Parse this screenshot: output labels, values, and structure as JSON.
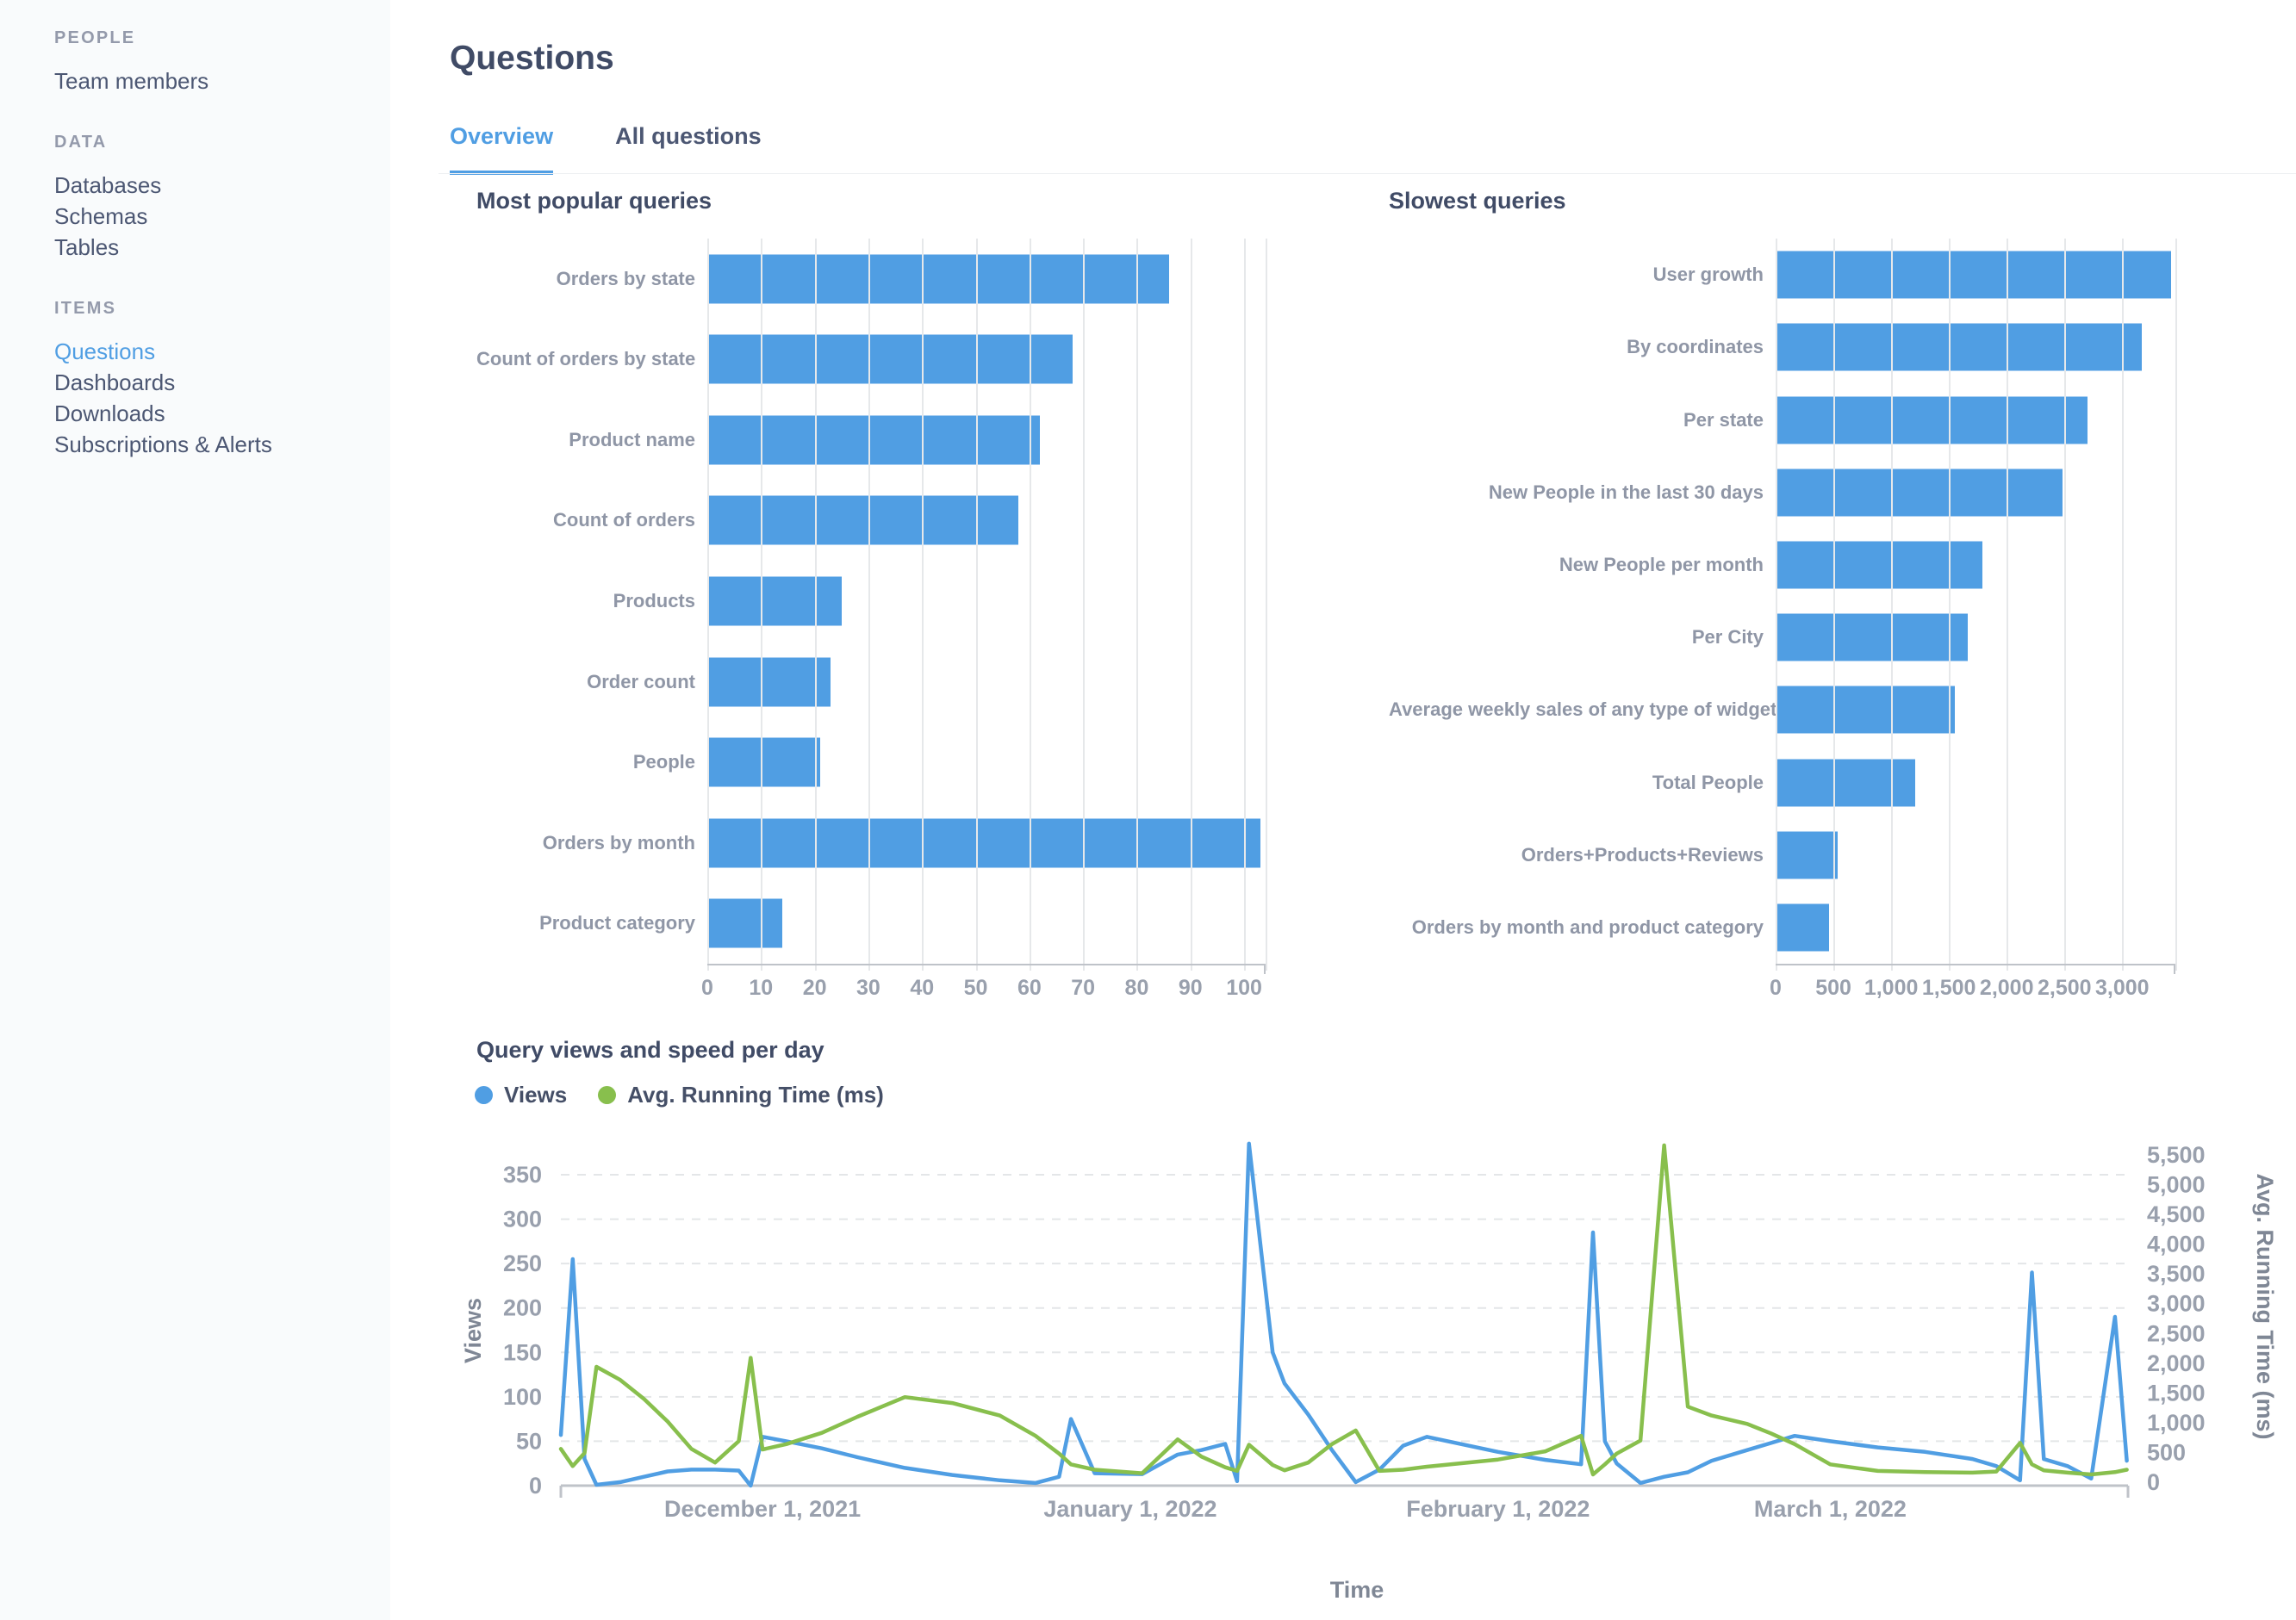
{
  "colors": {
    "brand_blue": "#509ee3",
    "series_green": "#88bf4d",
    "sidebar_bg": "#f9fbfc",
    "text_dark": "#404b66",
    "text_body": "#4c5773",
    "text_muted": "#949aab",
    "gridline": "#e6e8ea"
  },
  "sidebar": {
    "sections": [
      {
        "label": "PEOPLE",
        "items": [
          {
            "label": "Team members",
            "active": false
          }
        ]
      },
      {
        "label": "DATA",
        "items": [
          {
            "label": "Databases",
            "active": false
          },
          {
            "label": "Schemas",
            "active": false
          },
          {
            "label": "Tables",
            "active": false
          }
        ]
      },
      {
        "label": "ITEMS",
        "items": [
          {
            "label": "Questions",
            "active": true
          },
          {
            "label": "Dashboards",
            "active": false
          },
          {
            "label": "Downloads",
            "active": false
          },
          {
            "label": "Subscriptions & Alerts",
            "active": false
          }
        ]
      }
    ]
  },
  "header": {
    "title": "Questions",
    "tabs": [
      {
        "label": "Overview",
        "active": true
      },
      {
        "label": "All questions",
        "active": false
      }
    ]
  },
  "chart_data": [
    {
      "type": "bar",
      "orientation": "horizontal",
      "title": "Most popular queries",
      "categories": [
        "Orders by state",
        "Count of orders by state",
        "Product name",
        "Count of orders",
        "Products",
        "Order count",
        "People",
        "Orders by month",
        "Product category"
      ],
      "values": [
        86,
        68,
        62,
        58,
        25,
        23,
        21,
        103,
        14
      ],
      "xlim": [
        0,
        104
      ],
      "xticks": [
        {
          "v": 0,
          "label": "0"
        },
        {
          "v": 10,
          "label": "10"
        },
        {
          "v": 20,
          "label": "20"
        },
        {
          "v": 30,
          "label": "30"
        },
        {
          "v": 40,
          "label": "40"
        },
        {
          "v": 50,
          "label": "50"
        },
        {
          "v": 60,
          "label": "60"
        },
        {
          "v": 70,
          "label": "70"
        },
        {
          "v": 80,
          "label": "80"
        },
        {
          "v": 90,
          "label": "90"
        },
        {
          "v": 100,
          "label": "100"
        }
      ],
      "bar_color": "#509ee3",
      "grid": true
    },
    {
      "type": "bar",
      "orientation": "horizontal",
      "title": "Slowest queries",
      "categories": [
        "User growth",
        "By coordinates",
        "Per state",
        "New People in the last 30 days",
        "New People per month",
        "Per City",
        "Average weekly sales of any type of widget",
        "Total People",
        "Orders+Products+Reviews",
        "Orders by month and product category"
      ],
      "values": [
        3420,
        3170,
        2700,
        2480,
        1790,
        1660,
        1550,
        1210,
        540,
        460
      ],
      "xlim": [
        0,
        3460
      ],
      "xticks": [
        {
          "v": 0,
          "label": "0"
        },
        {
          "v": 500,
          "label": "500"
        },
        {
          "v": 1000,
          "label": "1,000"
        },
        {
          "v": 1500,
          "label": "1,500"
        },
        {
          "v": 2000,
          "label": "2,000"
        },
        {
          "v": 2500,
          "label": "2,500"
        },
        {
          "v": 3000,
          "label": "3,000"
        }
      ],
      "bar_color": "#509ee3",
      "grid": true
    },
    {
      "type": "line",
      "title": "Query views and speed per day",
      "xlabel": "Time",
      "grid": "horizontal-dashed",
      "legend_position": "top-left",
      "left_axis": {
        "label": "Views",
        "ticks": [
          0,
          50,
          100,
          150,
          200,
          250,
          300,
          350
        ],
        "max": 385
      },
      "right_axis": {
        "label": "Avg. Running Time (ms)",
        "ticks": [
          {
            "v": 0,
            "label": "0"
          },
          {
            "v": 500,
            "label": "500"
          },
          {
            "v": 1000,
            "label": "1,000"
          },
          {
            "v": 1500,
            "label": "1,500"
          },
          {
            "v": 2000,
            "label": "2,000"
          },
          {
            "v": 2500,
            "label": "2,500"
          },
          {
            "v": 3000,
            "label": "3,000"
          },
          {
            "v": 3500,
            "label": "3,500"
          },
          {
            "v": 4000,
            "label": "4,000"
          },
          {
            "v": 4500,
            "label": "4,500"
          },
          {
            "v": 5000,
            "label": "5,000"
          },
          {
            "v": 5500,
            "label": "5,500"
          }
        ],
        "max": 5800
      },
      "xticks": [
        {
          "date": "2021-12-01",
          "label": "December 1, 2021"
        },
        {
          "date": "2022-01-01",
          "label": "January 1, 2022"
        },
        {
          "date": "2022-02-01",
          "label": "February 1, 2022"
        },
        {
          "date": "2022-03-01",
          "label": "March 1, 2022"
        }
      ],
      "series": [
        {
          "name": "Views",
          "axis": "left",
          "color": "#509ee3",
          "points": [
            [
              "2021-11-14",
              57
            ],
            [
              "2021-11-15",
              255
            ],
            [
              "2021-11-16",
              30
            ],
            [
              "2021-11-17",
              1
            ],
            [
              "2021-11-19",
              4
            ],
            [
              "2021-11-21",
              10
            ],
            [
              "2021-11-23",
              16
            ],
            [
              "2021-11-25",
              18
            ],
            [
              "2021-11-27",
              18
            ],
            [
              "2021-11-29",
              17
            ],
            [
              "2021-11-30",
              0
            ],
            [
              "2021-12-01",
              55
            ],
            [
              "2021-12-03",
              50
            ],
            [
              "2021-12-06",
              42
            ],
            [
              "2021-12-09",
              32
            ],
            [
              "2021-12-13",
              20
            ],
            [
              "2021-12-17",
              12
            ],
            [
              "2021-12-21",
              6
            ],
            [
              "2021-12-24",
              3
            ],
            [
              "2021-12-26",
              10
            ],
            [
              "2021-12-27",
              75
            ],
            [
              "2021-12-29",
              14
            ],
            [
              "2022-01-02",
              13
            ],
            [
              "2022-01-05",
              35
            ],
            [
              "2022-01-07",
              40
            ],
            [
              "2022-01-09",
              47
            ],
            [
              "2022-01-10",
              5
            ],
            [
              "2022-01-11",
              385
            ],
            [
              "2022-01-13",
              150
            ],
            [
              "2022-01-14",
              115
            ],
            [
              "2022-01-16",
              80
            ],
            [
              "2022-01-18",
              40
            ],
            [
              "2022-01-20",
              4
            ],
            [
              "2022-01-22",
              18
            ],
            [
              "2022-01-24",
              45
            ],
            [
              "2022-01-26",
              55
            ],
            [
              "2022-02-01",
              38
            ],
            [
              "2022-02-05",
              29
            ],
            [
              "2022-02-08",
              24
            ],
            [
              "2022-02-09",
              285
            ],
            [
              "2022-02-10",
              50
            ],
            [
              "2022-02-11",
              25
            ],
            [
              "2022-02-13",
              3
            ],
            [
              "2022-02-15",
              10
            ],
            [
              "2022-02-17",
              15
            ],
            [
              "2022-02-19",
              28
            ],
            [
              "2022-02-22",
              40
            ],
            [
              "2022-02-24",
              48
            ],
            [
              "2022-02-26",
              56
            ],
            [
              "2022-03-01",
              50
            ],
            [
              "2022-03-05",
              43
            ],
            [
              "2022-03-09",
              38
            ],
            [
              "2022-03-13",
              30
            ],
            [
              "2022-03-15",
              22
            ],
            [
              "2022-03-17",
              6
            ],
            [
              "2022-03-18",
              240
            ],
            [
              "2022-03-19",
              30
            ],
            [
              "2022-03-21",
              22
            ],
            [
              "2022-03-23",
              8
            ],
            [
              "2022-03-25",
              190
            ],
            [
              "2022-03-26",
              28
            ]
          ]
        },
        {
          "name": "Avg. Running Time (ms)",
          "axis": "right",
          "color": "#88bf4d",
          "points": [
            [
              "2021-11-14",
              560
            ],
            [
              "2021-11-15",
              270
            ],
            [
              "2021-11-16",
              490
            ],
            [
              "2021-11-17",
              1940
            ],
            [
              "2021-11-19",
              1720
            ],
            [
              "2021-11-21",
              1400
            ],
            [
              "2021-11-23",
              1020
            ],
            [
              "2021-11-25",
              560
            ],
            [
              "2021-11-27",
              330
            ],
            [
              "2021-11-29",
              690
            ],
            [
              "2021-11-30",
              2090
            ],
            [
              "2021-12-01",
              550
            ],
            [
              "2021-12-03",
              640
            ],
            [
              "2021-12-06",
              830
            ],
            [
              "2021-12-09",
              1100
            ],
            [
              "2021-12-13",
              1430
            ],
            [
              "2021-12-17",
              1330
            ],
            [
              "2021-12-21",
              1120
            ],
            [
              "2021-12-24",
              780
            ],
            [
              "2021-12-26",
              480
            ],
            [
              "2021-12-27",
              300
            ],
            [
              "2021-12-29",
              210
            ],
            [
              "2022-01-02",
              150
            ],
            [
              "2022-01-05",
              720
            ],
            [
              "2022-01-07",
              430
            ],
            [
              "2022-01-09",
              250
            ],
            [
              "2022-01-10",
              190
            ],
            [
              "2022-01-11",
              630
            ],
            [
              "2022-01-13",
              290
            ],
            [
              "2022-01-14",
              200
            ],
            [
              "2022-01-16",
              330
            ],
            [
              "2022-01-18",
              640
            ],
            [
              "2022-01-20",
              870
            ],
            [
              "2022-01-22",
              190
            ],
            [
              "2022-01-24",
              210
            ],
            [
              "2022-01-26",
              260
            ],
            [
              "2022-02-01",
              380
            ],
            [
              "2022-02-05",
              520
            ],
            [
              "2022-02-08",
              780
            ],
            [
              "2022-02-09",
              130
            ],
            [
              "2022-02-10",
              300
            ],
            [
              "2022-02-11",
              480
            ],
            [
              "2022-02-13",
              700
            ],
            [
              "2022-02-15",
              5660
            ],
            [
              "2022-02-17",
              1270
            ],
            [
              "2022-02-19",
              1120
            ],
            [
              "2022-02-22",
              980
            ],
            [
              "2022-02-24",
              820
            ],
            [
              "2022-02-26",
              640
            ],
            [
              "2022-03-01",
              300
            ],
            [
              "2022-03-05",
              190
            ],
            [
              "2022-03-09",
              170
            ],
            [
              "2022-03-13",
              160
            ],
            [
              "2022-03-15",
              180
            ],
            [
              "2022-03-17",
              660
            ],
            [
              "2022-03-18",
              300
            ],
            [
              "2022-03-19",
              200
            ],
            [
              "2022-03-21",
              160
            ],
            [
              "2022-03-23",
              130
            ],
            [
              "2022-03-25",
              170
            ],
            [
              "2022-03-26",
              210
            ]
          ]
        }
      ]
    }
  ]
}
